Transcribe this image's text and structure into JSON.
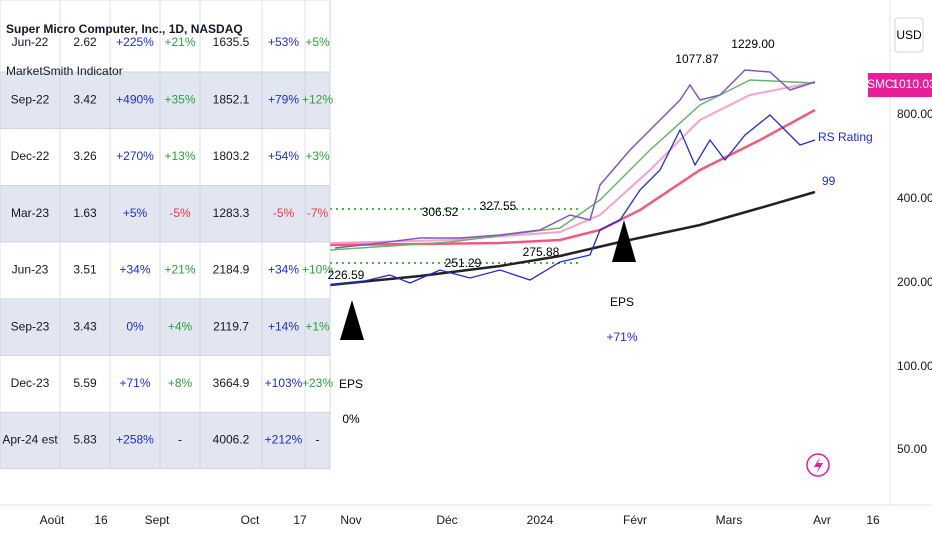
{
  "header": {
    "title": "Super Micro Computer, Inc., 1D, NASDAQ",
    "subtitle": "MarketSmith Indicator"
  },
  "table": {
    "rows": [
      [
        "Jun-22",
        "2.62",
        "+225%",
        "+21%",
        "1635.5",
        "+53%",
        "+5%"
      ],
      [
        "Sep-22",
        "3.42",
        "+490%",
        "+35%",
        "1852.1",
        "+79%",
        "+12%"
      ],
      [
        "Dec-22",
        "3.26",
        "+270%",
        "+13%",
        "1803.2",
        "+54%",
        "+3%"
      ],
      [
        "Mar-23",
        "1.63",
        "+5%",
        "-5%",
        "1283.3",
        "-5%",
        "-7%"
      ],
      [
        "Jun-23",
        "3.51",
        "+34%",
        "+21%",
        "2184.9",
        "+34%",
        "+10%"
      ],
      [
        "Sep-23",
        "3.43",
        "0%",
        "+4%",
        "2119.7",
        "+14%",
        "+1%"
      ],
      [
        "Dec-23",
        "5.59",
        "+71%",
        "+8%",
        "3664.9",
        "+103%",
        "+23%"
      ],
      [
        "Apr-24 est",
        "5.83",
        "+258%",
        "-",
        "4006.2",
        "+212%",
        "-"
      ]
    ]
  },
  "price_axis": {
    "currency": "USD",
    "labels": [
      "800.00",
      "400.00",
      "200.00",
      "100.00",
      "50.00"
    ],
    "symbol": "SMCI",
    "last": "1010.03"
  },
  "time_axis": {
    "labels": [
      "Août",
      "16",
      "Sept",
      "Oct",
      "17",
      "Nov",
      "Déc",
      "2024",
      "Févr",
      "Mars",
      "Avr",
      "16"
    ]
  },
  "annotations": {
    "highs": [
      "1077.87",
      "1229.00",
      "306.52",
      "327.55"
    ],
    "lows": [
      "251.29",
      "275.88",
      "226.59"
    ],
    "rs_label": "RS Rating",
    "rs_value": "99",
    "eps": [
      {
        "label": "EPS",
        "value": "0%"
      },
      {
        "label": "EPS",
        "value": "+71%"
      }
    ]
  }
}
